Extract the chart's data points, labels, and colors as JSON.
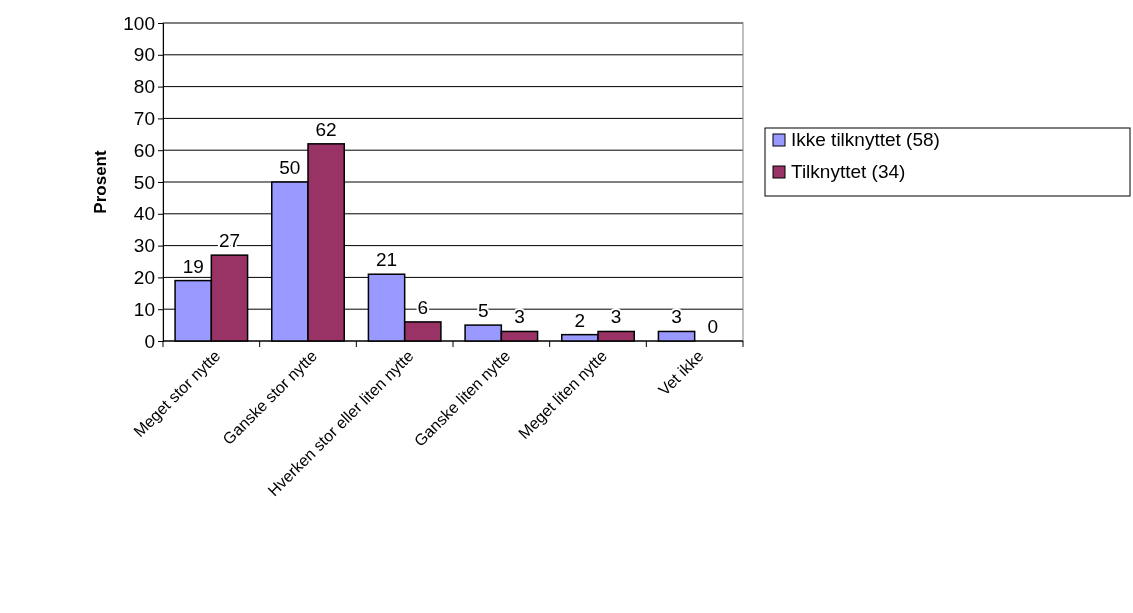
{
  "chart_data": {
    "type": "bar",
    "ylabel": "Prosent",
    "categories": [
      "Meget stor nytte",
      "Ganske stor nytte",
      "Hverken stor eller liten nytte",
      "Ganske liten nytte",
      "Meget liten nytte",
      "Vet ikke"
    ],
    "series": [
      {
        "name": "Ikke tilknyttet (58)",
        "color": "#9999ff",
        "values": [
          19,
          50,
          21,
          5,
          2,
          3
        ]
      },
      {
        "name": "Tilknyttet (34)",
        "color": "#993366",
        "values": [
          27,
          62,
          6,
          3,
          3,
          0
        ]
      }
    ],
    "ylim": [
      0,
      100
    ],
    "yticks": [
      0,
      10,
      20,
      30,
      40,
      50,
      60,
      70,
      80,
      90,
      100
    ],
    "grid": "y",
    "legend": "right",
    "data_labels": true
  }
}
